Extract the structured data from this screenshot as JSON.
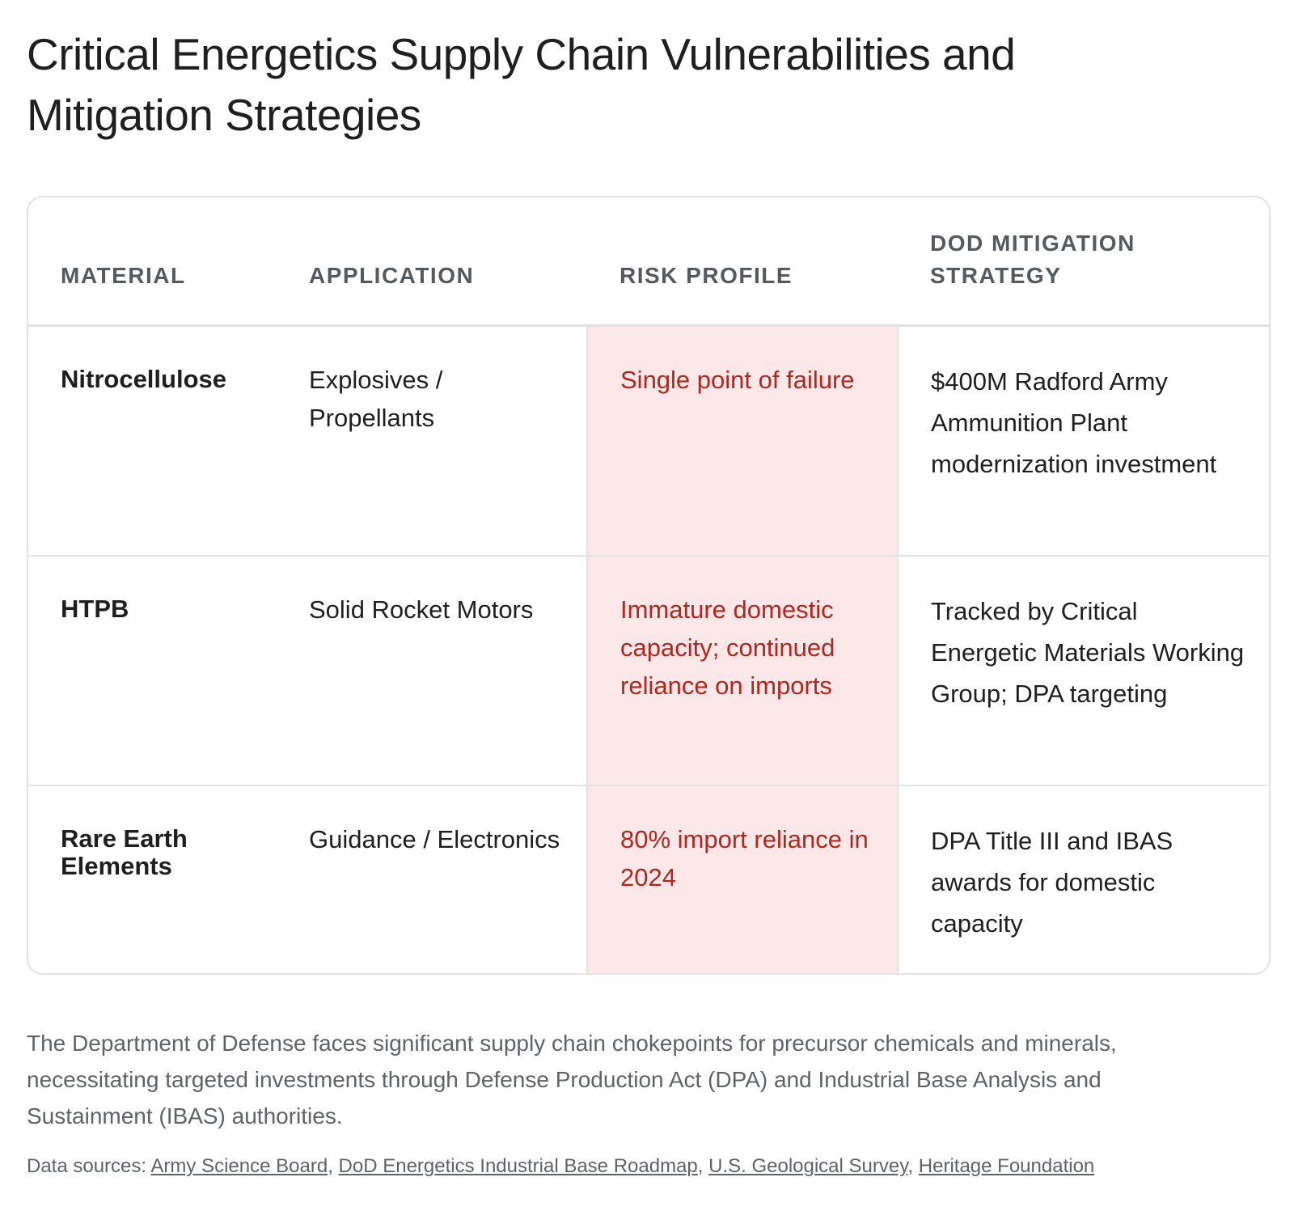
{
  "title": "Critical Energetics Supply Chain Vulnerabilities and Mitigation Strategies",
  "table": {
    "headers": {
      "material": "MATERIAL",
      "application": "APPLICATION",
      "risk_profile": "RISK PROFILE",
      "strategy": "DOD MITIGATION STRATEGY"
    },
    "rows": [
      {
        "material": "Nitrocellulose",
        "application": "Explosives / Propellants",
        "risk_profile": "Single point of failure",
        "strategy": "$400M Radford Army Ammunition Plant modernization investment"
      },
      {
        "material": "HTPB",
        "application": "Solid Rocket Motors",
        "risk_profile": "Immature domestic capacity; continued reliance on imports",
        "strategy": "Tracked by Critical Energetic Materials Working Group; DPA targeting"
      },
      {
        "material": "Rare Earth Elements",
        "application": "Guidance / Electronics",
        "risk_profile": "80% import reliance in 2024",
        "strategy": "DPA Title III and IBAS awards for domestic capacity"
      }
    ],
    "highlight_color": "#fce8e8",
    "risk_text_color": "#b3261e"
  },
  "summary": "The Department of Defense faces significant supply chain chokepoints for precursor chemicals and minerals, necessitating targeted investments through Defense Production Act (DPA) and Industrial Base Analysis and Sustainment (IBAS) authorities.",
  "sources": {
    "label": "Data sources:",
    "links": [
      "Army Science Board",
      "DoD Energetics Industrial Base Roadmap",
      "U.S. Geological Survey",
      "Heritage Foundation"
    ]
  }
}
